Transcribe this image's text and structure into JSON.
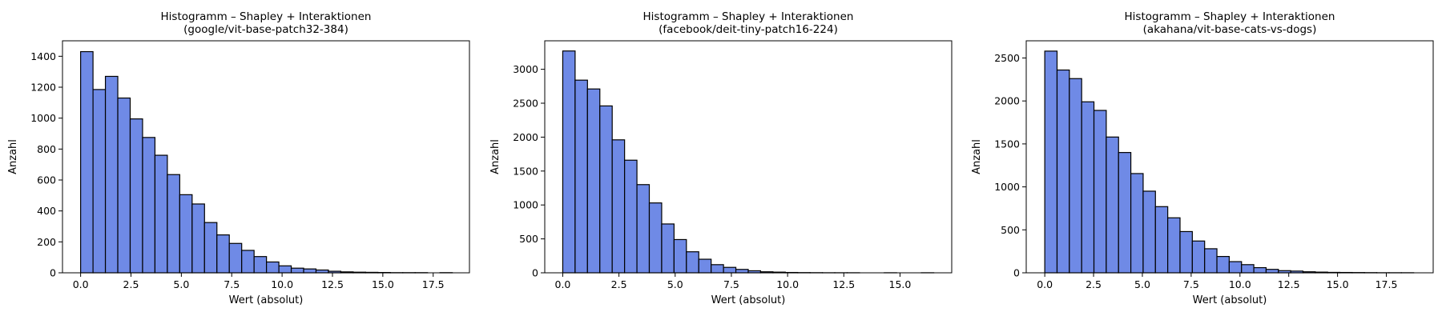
{
  "chart_data": [
    {
      "type": "bar",
      "title": "Histogramm – Shapley + Interaktionen",
      "subtitle": "(google/vit-base-patch32-384)",
      "xlabel": "Wert (absolut)",
      "ylabel": "Anzahl",
      "xlim": [
        -0.9,
        19.3
      ],
      "ylim": [
        0,
        1500
      ],
      "xticks": [
        0,
        2.5,
        5,
        7.5,
        10,
        12.5,
        15,
        17.5
      ],
      "xtick_labels": [
        "0.0",
        "2.5",
        "5.0",
        "7.5",
        "10.0",
        "12.5",
        "15.0",
        "17.5"
      ],
      "yticks": [
        0,
        200,
        400,
        600,
        800,
        1000,
        1200,
        1400
      ],
      "ytick_labels": [
        "0",
        "200",
        "400",
        "600",
        "800",
        "1000",
        "1200",
        "1400"
      ],
      "bin_start": 0,
      "bin_width": 0.615,
      "values": [
        1430,
        1185,
        1270,
        1130,
        995,
        875,
        760,
        635,
        505,
        445,
        325,
        245,
        190,
        145,
        105,
        70,
        45,
        30,
        25,
        18,
        10,
        6,
        4,
        3,
        2,
        1,
        1,
        1,
        0,
        1
      ],
      "bar_color": "#6f8ae6",
      "edge_color": "#000000",
      "grid": false
    },
    {
      "type": "bar",
      "title": "Histogramm – Shapley + Interaktionen",
      "subtitle": "(facebook/deit-tiny-patch16-224)",
      "xlabel": "Wert (absolut)",
      "ylabel": "Anzahl",
      "xlim": [
        -0.8,
        17.3
      ],
      "ylim": [
        0,
        3420
      ],
      "xticks": [
        0,
        2.5,
        5,
        7.5,
        10,
        12.5,
        15
      ],
      "xtick_labels": [
        "0.0",
        "2.5",
        "5.0",
        "7.5",
        "10.0",
        "12.5",
        "15.0"
      ],
      "yticks": [
        0,
        500,
        1000,
        1500,
        2000,
        2500,
        3000
      ],
      "ytick_labels": [
        "0",
        "500",
        "1000",
        "1500",
        "2000",
        "2500",
        "3000"
      ],
      "bin_start": 0,
      "bin_width": 0.55,
      "values": [
        3270,
        2840,
        2710,
        2460,
        1960,
        1660,
        1300,
        1030,
        720,
        490,
        310,
        200,
        120,
        80,
        50,
        30,
        15,
        10,
        5,
        3,
        2,
        1,
        1,
        1,
        0,
        0,
        1,
        0,
        0,
        1
      ],
      "bar_color": "#6f8ae6",
      "edge_color": "#000000",
      "grid": false
    },
    {
      "type": "bar",
      "title": "Histogramm – Shapley + Interaktionen",
      "subtitle": "(akahana/vit-base-cats-vs-dogs)",
      "xlabel": "Wert (absolut)",
      "ylabel": "Anzahl",
      "xlim": [
        -0.95,
        19.9
      ],
      "ylim": [
        0,
        2700
      ],
      "xticks": [
        0,
        2.5,
        5,
        7.5,
        10,
        12.5,
        15,
        17.5
      ],
      "xtick_labels": [
        "0.0",
        "2.5",
        "5.0",
        "7.5",
        "10.0",
        "12.5",
        "15.0",
        "17.5"
      ],
      "yticks": [
        0,
        500,
        1000,
        1500,
        2000,
        2500
      ],
      "ytick_labels": [
        "0",
        "500",
        "1000",
        "1500",
        "2000",
        "2500"
      ],
      "bin_start": 0,
      "bin_width": 0.63,
      "values": [
        2580,
        2360,
        2260,
        1990,
        1890,
        1580,
        1400,
        1155,
        950,
        770,
        640,
        480,
        370,
        280,
        190,
        130,
        95,
        60,
        40,
        25,
        20,
        12,
        8,
        5,
        4,
        3,
        2,
        1,
        1,
        1
      ],
      "bar_color": "#6f8ae6",
      "edge_color": "#000000",
      "grid": false
    }
  ]
}
